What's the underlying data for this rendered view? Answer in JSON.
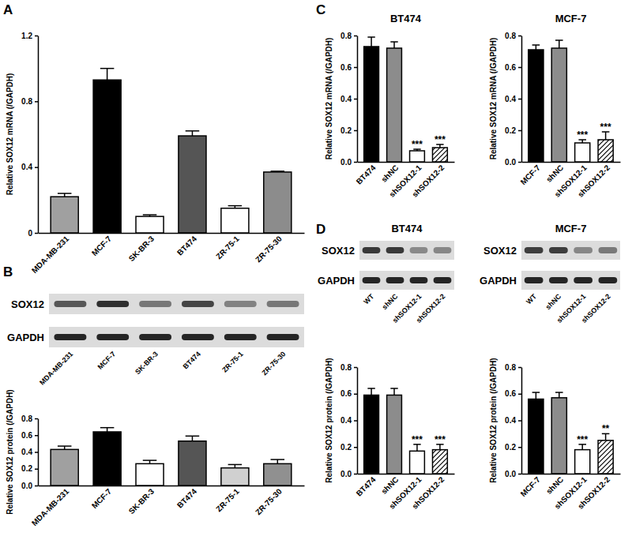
{
  "chart_data": [
    {
      "panel": "A",
      "type": "bar",
      "y_label": "Relative SOX12 mRNA (/GAPDH)",
      "categories": [
        "MDA-MB-231",
        "MCF-7",
        "SK-BR-3",
        "BT474",
        "ZR-75-1",
        "ZR-75-30"
      ],
      "values": [
        0.22,
        0.93,
        0.1,
        0.59,
        0.15,
        0.37
      ],
      "errors": [
        0.02,
        0.07,
        0.01,
        0.03,
        0.015,
        0.005
      ],
      "colors": [
        "#a0a0a0",
        "#000000",
        "#ffffff",
        "#555555",
        "#ffffff",
        "#8c8c8c"
      ],
      "ylim": [
        0,
        1.2
      ],
      "yticks": [
        0,
        0.4,
        0.8,
        1.2
      ]
    },
    {
      "panel": "B",
      "type": "bar",
      "y_label": "Relative SOX12 protein (/GAPDH)",
      "blot": {
        "rows": [
          "SOX12",
          "GAPDH"
        ],
        "lanes": [
          "MDA-MB-231",
          "MCF-7",
          "SK-BR-3",
          "BT474",
          "ZR-75-1",
          "ZR-75-30"
        ]
      },
      "categories": [
        "MDA-MB-231",
        "MCF-7",
        "SK-BR-3",
        "BT474",
        "ZR-75-1",
        "ZR-75-30"
      ],
      "values": [
        0.43,
        0.64,
        0.26,
        0.53,
        0.21,
        0.26
      ],
      "errors": [
        0.04,
        0.05,
        0.04,
        0.06,
        0.04,
        0.05
      ],
      "colors": [
        "#a0a0a0",
        "#000000",
        "#ffffff",
        "#555555",
        "#d0d0d0",
        "#909090"
      ],
      "ylim": [
        0,
        0.8
      ],
      "yticks": [
        {
          "value": 0,
          "label": "0.0"
        },
        {
          "value": 0.2,
          "label": "0.2"
        },
        {
          "value": 0.4,
          "label": "0.4"
        },
        {
          "value": 0.6,
          "label": "0.6"
        },
        {
          "value": 0.8,
          "label": "0.8"
        }
      ]
    },
    {
      "panel": "C",
      "type": "bar",
      "title": "BT474",
      "y_label": "Relative SOX12 mRNA (/GAPDH)",
      "categories": [
        "BT474",
        "shNC",
        "shSOX12-1",
        "shSOX12-2"
      ],
      "values": [
        0.73,
        0.72,
        0.07,
        0.09
      ],
      "errors": [
        0.06,
        0.04,
        0.01,
        0.02
      ],
      "annotations": [
        null,
        null,
        "***",
        "***"
      ],
      "colors": [
        "#000000",
        "#8c8c8c",
        "#ffffff",
        "hatch"
      ],
      "ylim": [
        0,
        0.8
      ],
      "yticks": [
        {
          "value": 0,
          "label": "0.0"
        },
        {
          "value": 0.2,
          "label": "0.2"
        },
        {
          "value": 0.4,
          "label": "0.4"
        },
        {
          "value": 0.6,
          "label": "0.6"
        },
        {
          "value": 0.8,
          "label": "0.8"
        }
      ]
    },
    {
      "type": "bar",
      "title": "MCF-7",
      "y_label": "Relative SOX12 mRNA (/GAPDH)",
      "categories": [
        "MCF-7",
        "shNC",
        "shSOX12-1",
        "shSOX12-2"
      ],
      "values": [
        0.71,
        0.72,
        0.12,
        0.14
      ],
      "errors": [
        0.03,
        0.05,
        0.02,
        0.05
      ],
      "annotations": [
        null,
        null,
        "***",
        "***"
      ],
      "colors": [
        "#000000",
        "#8c8c8c",
        "#ffffff",
        "hatch"
      ],
      "ylim": [
        0,
        0.8
      ],
      "yticks": [
        {
          "value": 0,
          "label": "0.0"
        },
        {
          "value": 0.2,
          "label": "0.2"
        },
        {
          "value": 0.4,
          "label": "0.4"
        },
        {
          "value": 0.6,
          "label": "0.6"
        },
        {
          "value": 0.8,
          "label": "0.8"
        }
      ]
    },
    {
      "panel": "D",
      "type": "bar",
      "y_label": "Relative SOX12 protein (/GAPDH)",
      "blot": {
        "title": "BT474",
        "rows": [
          "SOX12",
          "GAPDH"
        ],
        "lanes": [
          "WT",
          "shNC",
          "shSOX12-1",
          "shSOX12-2"
        ]
      },
      "title": "BT474",
      "categories": [
        "BT474",
        "shNC",
        "shSOX12-1",
        "shSOX12-2"
      ],
      "values": [
        0.59,
        0.59,
        0.17,
        0.18
      ],
      "errors": [
        0.05,
        0.05,
        0.05,
        0.04
      ],
      "annotations": [
        null,
        null,
        "***",
        "***"
      ],
      "colors": [
        "#000000",
        "#8c8c8c",
        "#ffffff",
        "hatch"
      ],
      "ylim": [
        0,
        0.8
      ],
      "yticks": [
        {
          "value": 0,
          "label": "0.0"
        },
        {
          "value": 0.2,
          "label": "0.2"
        },
        {
          "value": 0.4,
          "label": "0.4"
        },
        {
          "value": 0.6,
          "label": "0.6"
        },
        {
          "value": 0.8,
          "label": "0.8"
        }
      ]
    },
    {
      "type": "bar",
      "y_label": "Relative SOX12 protein (/GAPDH)",
      "blot": {
        "title": "MCF-7",
        "rows": [
          "SOX12",
          "GAPDH"
        ],
        "lanes": [
          "WT",
          "shNC",
          "shSOX12-1",
          "shSOX12-2"
        ]
      },
      "title": "MCF-7",
      "categories": [
        "MCF-7",
        "shNC",
        "shSOX12-1",
        "shSOX12-2"
      ],
      "values": [
        0.56,
        0.57,
        0.18,
        0.25
      ],
      "errors": [
        0.05,
        0.04,
        0.04,
        0.05
      ],
      "annotations": [
        null,
        null,
        "***",
        "**"
      ],
      "colors": [
        "#000000",
        "#8c8c8c",
        "#ffffff",
        "hatch"
      ],
      "ylim": [
        0,
        0.8
      ],
      "yticks": [
        {
          "value": 0,
          "label": "0.0"
        },
        {
          "value": 0.2,
          "label": "0.2"
        },
        {
          "value": 0.4,
          "label": "0.4"
        },
        {
          "value": 0.6,
          "label": "0.6"
        },
        {
          "value": 0.8,
          "label": "0.8"
        }
      ]
    }
  ]
}
